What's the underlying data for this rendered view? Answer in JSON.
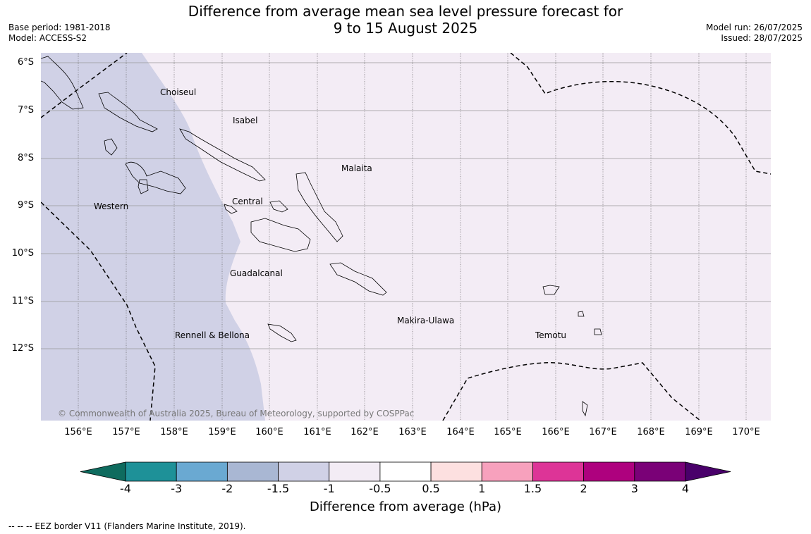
{
  "title": {
    "line1": "Difference from average mean sea level pressure forecast for",
    "line2": "9 to 15 August 2025"
  },
  "meta_left": {
    "base_period": "Base period: 1981-2018",
    "model": "Model: ACCESS-S2"
  },
  "meta_right": {
    "model_run": "Model run: 26/07/2025",
    "issued": "Issued: 28/07/2025"
  },
  "map": {
    "lat_labels": [
      "6°S",
      "7°S",
      "8°S",
      "9°S",
      "10°S",
      "11°S",
      "12°S"
    ],
    "lon_labels": [
      "156°E",
      "157°E",
      "158°E",
      "159°E",
      "160°E",
      "161°E",
      "162°E",
      "163°E",
      "164°E",
      "165°E",
      "166°E",
      "167°E",
      "168°E",
      "169°E",
      "170°E"
    ],
    "region_labels": [
      "Choiseul",
      "Isabel",
      "Malaita",
      "Western",
      "Central",
      "Guadalcanal",
      "Makira-Ulawa",
      "Temotu",
      "Rennell & Bellona"
    ],
    "copyright": "© Commonwealth of Australia 2025, Bureau of Meteorology, supported by COSPPac",
    "shading": {
      "west_band": "-1.5 to -1",
      "rest": "-1 to -0.5"
    }
  },
  "colorbar": {
    "ticks": [
      "-4",
      "-3",
      "-2",
      "-1.5",
      "-1",
      "-0.5",
      "0.5",
      "1",
      "1.5",
      "2",
      "3",
      "4"
    ],
    "colors": {
      "under": "#0e6b5e",
      "bins": [
        "#1e9198",
        "#6aa9d2",
        "#a9b7d3",
        "#d0d1e6",
        "#f3ecf5",
        "#ffffff",
        "#fde0e0",
        "#f7a1bd",
        "#dd3497",
        "#ae017e",
        "#7a0177"
      ],
      "over": "#49006a"
    },
    "label": "Difference from average (hPa)"
  },
  "legend_note": "-- -- -- EEZ border V11 (Flanders Marine Institute, 2019)."
}
